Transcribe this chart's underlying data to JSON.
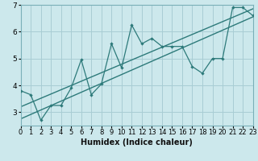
{
  "title": "",
  "xlabel": "Humidex (Indice chaleur)",
  "bg_color": "#cce8ec",
  "grid_color": "#a8cdd4",
  "line_color": "#2d7a7a",
  "xlim": [
    0,
    23
  ],
  "ylim": [
    2.5,
    7.0
  ],
  "xticks": [
    0,
    1,
    2,
    3,
    4,
    5,
    6,
    7,
    8,
    9,
    10,
    11,
    12,
    13,
    14,
    15,
    16,
    17,
    18,
    19,
    20,
    21,
    22,
    23
  ],
  "yticks": [
    3,
    4,
    5,
    6,
    7
  ],
  "data_x": [
    0,
    1,
    2,
    3,
    4,
    5,
    6,
    7,
    8,
    9,
    10,
    11,
    12,
    13,
    14,
    15,
    16,
    17,
    18,
    19,
    20,
    21,
    22,
    23
  ],
  "data_y": [
    3.8,
    3.65,
    2.7,
    3.25,
    3.25,
    3.9,
    4.95,
    3.65,
    4.05,
    5.55,
    4.65,
    6.25,
    5.55,
    5.75,
    5.45,
    5.45,
    5.45,
    4.7,
    4.45,
    5.0,
    5.0,
    6.9,
    6.9,
    6.6
  ],
  "trend1_x": [
    0,
    23
  ],
  "trend1_y": [
    3.2,
    6.85
  ],
  "trend2_x": [
    0,
    23
  ],
  "trend2_y": [
    2.75,
    6.55
  ]
}
